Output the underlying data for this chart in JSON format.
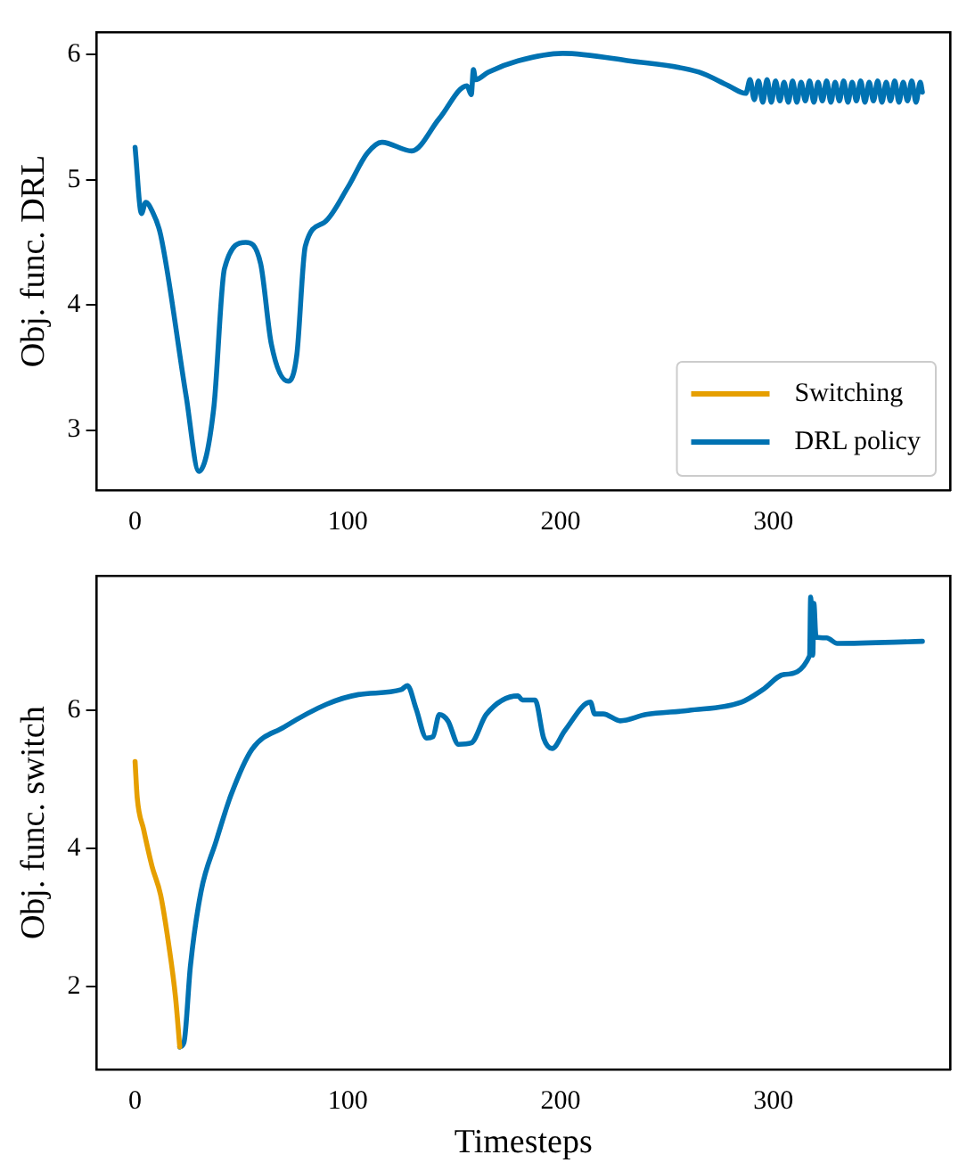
{
  "chart_data": [
    {
      "type": "line",
      "ylabel": "Obj. func. DRL",
      "xlim": [
        -18,
        383
      ],
      "ylim": [
        2.52,
        6.18
      ],
      "xticks": [
        0,
        100,
        200,
        300
      ],
      "yticks": [
        3,
        4,
        5,
        6
      ],
      "grid": false,
      "legend": "bottom right",
      "marker": "none",
      "line_style": "solid",
      "series": [
        {
          "name": "Switching",
          "color": "#e69f00"
        },
        {
          "name": "DRL policy",
          "color": "#0072b2",
          "x": [
            0,
            3,
            5,
            8,
            12,
            24,
            30,
            37,
            42,
            52,
            59,
            64,
            72,
            76,
            80,
            89,
            100,
            109,
            116,
            130,
            143,
            156,
            158,
            159,
            160,
            166,
            180,
            201,
            232,
            265,
            279,
            287,
            289,
            291,
            293,
            295,
            297,
            299,
            301,
            303,
            305,
            307,
            309,
            311,
            313,
            315,
            317,
            319,
            321,
            323,
            325,
            327,
            329,
            331,
            333,
            335,
            337,
            339,
            341,
            343,
            345,
            347,
            349,
            351,
            353,
            355,
            357,
            359,
            361,
            363,
            365,
            367,
            369,
            370
          ],
          "values": [
            5.26,
            4.73,
            4.82,
            4.75,
            4.56,
            3.27,
            2.67,
            3.18,
            4.29,
            4.5,
            4.33,
            3.69,
            3.39,
            3.6,
            4.47,
            4.66,
            4.94,
            5.21,
            5.3,
            5.23,
            5.49,
            5.75,
            5.68,
            5.88,
            5.8,
            5.86,
            5.95,
            6.01,
            5.95,
            5.86,
            5.75,
            5.69,
            5.8,
            5.64,
            5.79,
            5.62,
            5.8,
            5.62,
            5.79,
            5.63,
            5.78,
            5.62,
            5.79,
            5.62,
            5.78,
            5.63,
            5.79,
            5.62,
            5.78,
            5.63,
            5.79,
            5.62,
            5.78,
            5.63,
            5.79,
            5.62,
            5.78,
            5.63,
            5.79,
            5.62,
            5.78,
            5.63,
            5.79,
            5.62,
            5.78,
            5.63,
            5.79,
            5.62,
            5.78,
            5.63,
            5.79,
            5.62,
            5.78,
            5.7
          ]
        }
      ]
    },
    {
      "type": "line",
      "xlabel": "Timesteps",
      "ylabel": "Obj. func. switch",
      "xlim": [
        -18,
        383
      ],
      "ylim": [
        0.8,
        7.95
      ],
      "xticks": [
        0,
        100,
        200,
        300
      ],
      "yticks": [
        2,
        4,
        6
      ],
      "grid": false,
      "legend": false,
      "marker": "none",
      "line_style": "solid",
      "series": [
        {
          "color": "#e69f00",
          "x": [
            0,
            1,
            4,
            8,
            12,
            16,
            19,
            21
          ],
          "values": [
            5.26,
            4.74,
            4.28,
            3.74,
            3.33,
            2.57,
            1.85,
            1.13
          ]
        },
        {
          "color": "#0072b2",
          "x": [
            21,
            23,
            26,
            31,
            38,
            45,
            55,
            70,
            90,
            105,
            125,
            128,
            132,
            137,
            140,
            143,
            147,
            152,
            158,
            165,
            180,
            182,
            188,
            192,
            196,
            202,
            214,
            216,
            220,
            228,
            240,
            260,
            285,
            295,
            305,
            317,
            317.5,
            318.5,
            319,
            320,
            325,
            330,
            370
          ],
          "values": [
            1.13,
            1.2,
            2.3,
            3.38,
            4.1,
            4.77,
            5.44,
            5.76,
            6.09,
            6.23,
            6.3,
            6.36,
            6.03,
            5.6,
            5.62,
            5.94,
            5.85,
            5.51,
            5.53,
            5.94,
            6.21,
            6.15,
            6.15,
            5.6,
            5.45,
            5.71,
            6.12,
            5.95,
            5.95,
            5.85,
            5.94,
            6.0,
            6.12,
            6.3,
            6.52,
            6.79,
            7.64,
            6.8,
            7.55,
            7.06,
            7.05,
            6.97,
            7.0
          ]
        }
      ]
    }
  ]
}
